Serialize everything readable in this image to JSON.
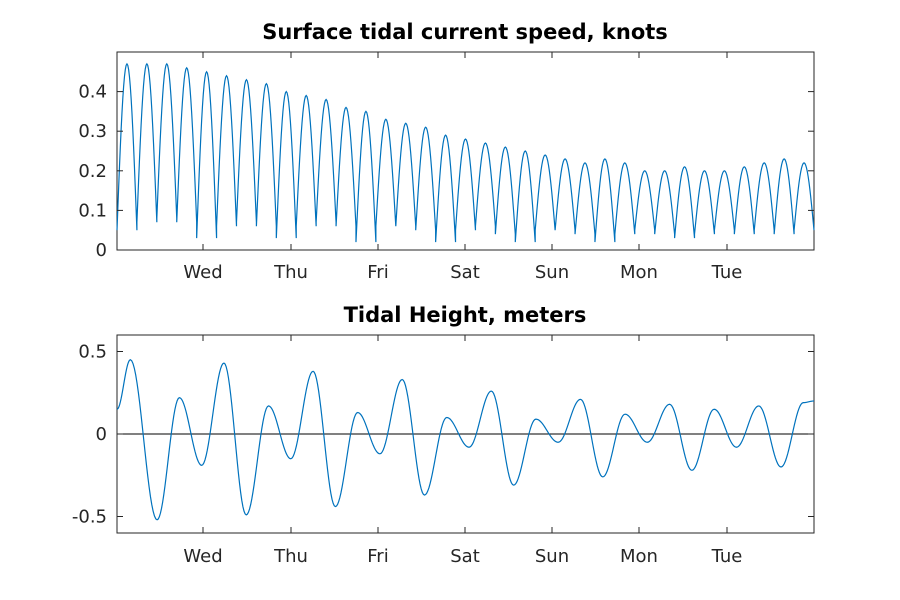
{
  "chart_data": [
    {
      "type": "line",
      "title": "Surface tidal current speed, knots",
      "xlabel": "",
      "ylabel": "",
      "x_tick_labels": [
        "Wed",
        "Thu",
        "Fri",
        "Sat",
        "Sun",
        "Mon",
        "Tue"
      ],
      "y_ticks": [
        0,
        0.1,
        0.2,
        0.3,
        0.4
      ],
      "y_tick_labels": [
        "0",
        "0.1",
        "0.2",
        "0.3",
        "0.4"
      ],
      "ylim": [
        0,
        0.5
      ],
      "grid": false,
      "series": [
        {
          "color": "#0072bd",
          "peaks": [
            0.47,
            0.47,
            0.47,
            0.46,
            0.45,
            0.44,
            0.43,
            0.42,
            0.4,
            0.39,
            0.38,
            0.36,
            0.35,
            0.33,
            0.32,
            0.31,
            0.29,
            0.28,
            0.27,
            0.26,
            0.25,
            0.24,
            0.23,
            0.22,
            0.23,
            0.22,
            0.2,
            0.2,
            0.21,
            0.2,
            0.2,
            0.21,
            0.22,
            0.23,
            0.22
          ],
          "troughs": [
            0.05,
            0.07,
            0.08,
            0.07,
            0.03,
            0.06,
            0.07,
            0.06,
            0.03,
            0.06,
            0.07,
            0.06,
            0.02,
            0.06,
            0.06,
            0.05,
            0.02,
            0.05,
            0.06,
            0.04,
            0.02,
            0.05,
            0.05,
            0.04,
            0.02,
            0.04,
            0.05,
            0.04,
            0.03,
            0.04,
            0.05,
            0.04,
            0.05,
            0.04,
            0.05
          ]
        }
      ]
    },
    {
      "type": "line",
      "title": "Tidal Height, meters",
      "xlabel": "",
      "ylabel": "",
      "x_tick_labels": [
        "Wed",
        "Thu",
        "Fri",
        "Sat",
        "Sun",
        "Mon",
        "Tue"
      ],
      "y_ticks": [
        -0.5,
        0,
        0.5
      ],
      "y_tick_labels": [
        "-0.5",
        "0",
        "0.5"
      ],
      "ylim": [
        -0.6,
        0.6
      ],
      "zero_line": true,
      "grid": false,
      "series": [
        {
          "color": "#0072bd",
          "extrema": [
            [
              0.0,
              0.15
            ],
            [
              0.15,
              0.45
            ],
            [
              0.45,
              -0.52
            ],
            [
              0.7,
              0.22
            ],
            [
              0.95,
              -0.19
            ],
            [
              1.2,
              0.43
            ],
            [
              1.45,
              -0.49
            ],
            [
              1.7,
              0.17
            ],
            [
              1.95,
              -0.15
            ],
            [
              2.2,
              0.38
            ],
            [
              2.45,
              -0.44
            ],
            [
              2.7,
              0.13
            ],
            [
              2.95,
              -0.12
            ],
            [
              3.2,
              0.33
            ],
            [
              3.45,
              -0.37
            ],
            [
              3.7,
              0.1
            ],
            [
              3.95,
              -0.08
            ],
            [
              4.2,
              0.26
            ],
            [
              4.45,
              -0.31
            ],
            [
              4.7,
              0.09
            ],
            [
              4.95,
              -0.05
            ],
            [
              5.2,
              0.21
            ],
            [
              5.45,
              -0.26
            ],
            [
              5.7,
              0.12
            ],
            [
              5.95,
              -0.05
            ],
            [
              6.2,
              0.18
            ],
            [
              6.45,
              -0.22
            ],
            [
              6.7,
              0.15
            ],
            [
              6.95,
              -0.08
            ],
            [
              7.2,
              0.17
            ],
            [
              7.45,
              -0.2
            ],
            [
              7.7,
              0.19
            ],
            [
              7.82,
              0.2
            ]
          ]
        }
      ]
    }
  ]
}
